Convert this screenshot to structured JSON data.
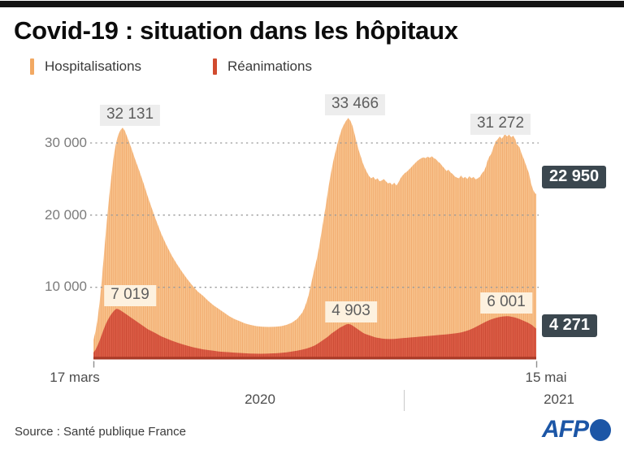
{
  "header": {
    "title": "Covid-19 : situation dans les hôpitaux"
  },
  "legend": {
    "items": [
      {
        "label": "Hospitalisations",
        "color": "#f2a963"
      },
      {
        "label": "Réanimations",
        "color": "#d14b2f"
      }
    ]
  },
  "chart_data": {
    "type": "area",
    "title": "Covid-19 : situation dans les hôpitaux",
    "x_axis": {
      "start_label": "17 mars",
      "end_label": "15 mai",
      "years": [
        "2020",
        "2021"
      ],
      "domain_days": [
        0,
        424
      ]
    },
    "y_axis": {
      "ylim": [
        0,
        35000
      ],
      "grid": "dotted",
      "ticks": [
        {
          "value": 30000,
          "label": "30 000"
        },
        {
          "value": 20000,
          "label": "20 000"
        },
        {
          "value": 10000,
          "label": "10 000"
        }
      ]
    },
    "series": [
      {
        "name": "Hospitalisations",
        "color_light": "#f8c28b",
        "color_dark": "#f1aa6b",
        "peaks": [
          {
            "label": "32 131",
            "value": 32131,
            "day": 28
          },
          {
            "label": "33 466",
            "value": 33466,
            "day": 244
          },
          {
            "label": "31 272",
            "value": 31272,
            "day": 394
          }
        ],
        "end": {
          "label": "22 950",
          "value": 22950
        },
        "points": [
          [
            0,
            2700
          ],
          [
            2,
            3900
          ],
          [
            4,
            5600
          ],
          [
            6,
            8000
          ],
          [
            8,
            11000
          ],
          [
            10,
            14500
          ],
          [
            12,
            17800
          ],
          [
            14,
            21000
          ],
          [
            16,
            23900
          ],
          [
            18,
            26400
          ],
          [
            20,
            28700
          ],
          [
            22,
            30200
          ],
          [
            24,
            31200
          ],
          [
            26,
            31800
          ],
          [
            28,
            32131
          ],
          [
            30,
            31700
          ],
          [
            33,
            30600
          ],
          [
            36,
            29400
          ],
          [
            40,
            27700
          ],
          [
            44,
            26100
          ],
          [
            48,
            24400
          ],
          [
            52,
            22600
          ],
          [
            56,
            20900
          ],
          [
            60,
            19300
          ],
          [
            65,
            17400
          ],
          [
            70,
            15800
          ],
          [
            75,
            14400
          ],
          [
            80,
            13200
          ],
          [
            85,
            12100
          ],
          [
            90,
            11100
          ],
          [
            95,
            10200
          ],
          [
            100,
            9400
          ],
          [
            105,
            8800
          ],
          [
            110,
            8100
          ],
          [
            115,
            7500
          ],
          [
            120,
            7000
          ],
          [
            125,
            6500
          ],
          [
            130,
            6000
          ],
          [
            135,
            5600
          ],
          [
            140,
            5300
          ],
          [
            145,
            5000
          ],
          [
            150,
            4800
          ],
          [
            156,
            4620
          ],
          [
            162,
            4530
          ],
          [
            168,
            4500
          ],
          [
            174,
            4520
          ],
          [
            180,
            4620
          ],
          [
            185,
            4800
          ],
          [
            190,
            5100
          ],
          [
            195,
            5600
          ],
          [
            200,
            6500
          ],
          [
            202,
            7100
          ],
          [
            204,
            7900
          ],
          [
            206,
            8900
          ],
          [
            208,
            10200
          ],
          [
            210,
            11500
          ],
          [
            212,
            12800
          ],
          [
            214,
            14000
          ],
          [
            216,
            15500
          ],
          [
            218,
            17300
          ],
          [
            220,
            19100
          ],
          [
            222,
            20900
          ],
          [
            224,
            22800
          ],
          [
            226,
            24700
          ],
          [
            228,
            26300
          ],
          [
            230,
            27700
          ],
          [
            232,
            28900
          ],
          [
            234,
            30100
          ],
          [
            236,
            31100
          ],
          [
            238,
            32000
          ],
          [
            240,
            32600
          ],
          [
            242,
            33100
          ],
          [
            244,
            33466
          ],
          [
            246,
            33100
          ],
          [
            248,
            32400
          ],
          [
            250,
            31300
          ],
          [
            252,
            30100
          ],
          [
            254,
            29000
          ],
          [
            256,
            28100
          ],
          [
            258,
            27200
          ],
          [
            260,
            26500
          ],
          [
            262,
            25900
          ],
          [
            264,
            25400
          ],
          [
            266,
            25100
          ],
          [
            268,
            25300
          ],
          [
            270,
            24900
          ],
          [
            272,
            25100
          ],
          [
            274,
            24700
          ],
          [
            276,
            24800
          ],
          [
            278,
            25000
          ],
          [
            280,
            24700
          ],
          [
            282,
            24400
          ],
          [
            284,
            24500
          ],
          [
            286,
            24200
          ],
          [
            288,
            24500
          ],
          [
            290,
            24100
          ],
          [
            292,
            24500
          ],
          [
            294,
            25100
          ],
          [
            296,
            25500
          ],
          [
            298,
            25800
          ],
          [
            300,
            26000
          ],
          [
            302,
            26300
          ],
          [
            304,
            26600
          ],
          [
            306,
            26900
          ],
          [
            308,
            27200
          ],
          [
            310,
            27500
          ],
          [
            312,
            27700
          ],
          [
            314,
            27900
          ],
          [
            316,
            28000
          ],
          [
            318,
            27900
          ],
          [
            320,
            28100
          ],
          [
            322,
            27950
          ],
          [
            324,
            28150
          ],
          [
            326,
            27900
          ],
          [
            328,
            27750
          ],
          [
            330,
            27400
          ],
          [
            332,
            27200
          ],
          [
            334,
            26800
          ],
          [
            336,
            26500
          ],
          [
            338,
            26100
          ],
          [
            340,
            26300
          ],
          [
            342,
            25900
          ],
          [
            344,
            25700
          ],
          [
            346,
            25350
          ],
          [
            348,
            25200
          ],
          [
            350,
            25100
          ],
          [
            352,
            25500
          ],
          [
            354,
            25100
          ],
          [
            356,
            25300
          ],
          [
            358,
            25000
          ],
          [
            360,
            25400
          ],
          [
            362,
            25100
          ],
          [
            364,
            25300
          ],
          [
            366,
            24950
          ],
          [
            368,
            25100
          ],
          [
            370,
            25300
          ],
          [
            372,
            25800
          ],
          [
            374,
            26100
          ],
          [
            376,
            26800
          ],
          [
            377,
            27400
          ],
          [
            379,
            28100
          ],
          [
            381,
            28500
          ],
          [
            383,
            29400
          ],
          [
            385,
            30200
          ],
          [
            387,
            30500
          ],
          [
            389,
            30900
          ],
          [
            391,
            30600
          ],
          [
            393,
            31000
          ],
          [
            394,
            31272
          ],
          [
            396,
            30900
          ],
          [
            398,
            31150
          ],
          [
            400,
            30800
          ],
          [
            402,
            31000
          ],
          [
            404,
            30500
          ],
          [
            405,
            29900
          ],
          [
            408,
            29400
          ],
          [
            410,
            28500
          ],
          [
            412,
            27800
          ],
          [
            415,
            26600
          ],
          [
            417,
            25800
          ],
          [
            419,
            24400
          ],
          [
            421,
            23500
          ],
          [
            423,
            23000
          ],
          [
            424,
            22950
          ]
        ]
      },
      {
        "name": "Réanimations",
        "color_light": "#dd5b45",
        "color_dark": "#ca4833",
        "baseline_color": "#a93a27",
        "peaks": [
          {
            "label": "7 019",
            "value": 7019,
            "day": 22
          },
          {
            "label": "4 903",
            "value": 4903,
            "day": 244
          },
          {
            "label": "6 001",
            "value": 6001,
            "day": 396
          }
        ],
        "end": {
          "label": "4 271",
          "value": 4271
        },
        "points": [
          [
            0,
            950
          ],
          [
            2,
            1350
          ],
          [
            4,
            1950
          ],
          [
            6,
            2650
          ],
          [
            8,
            3450
          ],
          [
            10,
            4250
          ],
          [
            12,
            4950
          ],
          [
            14,
            5550
          ],
          [
            16,
            6050
          ],
          [
            18,
            6450
          ],
          [
            20,
            6800
          ],
          [
            22,
            7019
          ],
          [
            24,
            6950
          ],
          [
            26,
            6800
          ],
          [
            28,
            6600
          ],
          [
            30,
            6400
          ],
          [
            33,
            6100
          ],
          [
            36,
            5800
          ],
          [
            40,
            5400
          ],
          [
            44,
            5000
          ],
          [
            48,
            4600
          ],
          [
            52,
            4200
          ],
          [
            56,
            3900
          ],
          [
            60,
            3600
          ],
          [
            65,
            3200
          ],
          [
            70,
            2900
          ],
          [
            75,
            2600
          ],
          [
            80,
            2350
          ],
          [
            85,
            2100
          ],
          [
            90,
            1900
          ],
          [
            95,
            1700
          ],
          [
            100,
            1550
          ],
          [
            105,
            1400
          ],
          [
            110,
            1300
          ],
          [
            115,
            1200
          ],
          [
            120,
            1100
          ],
          [
            125,
            1050
          ],
          [
            130,
            1000
          ],
          [
            135,
            950
          ],
          [
            140,
            900
          ],
          [
            145,
            860
          ],
          [
            150,
            820
          ],
          [
            155,
            800
          ],
          [
            160,
            790
          ],
          [
            165,
            800
          ],
          [
            170,
            830
          ],
          [
            175,
            860
          ],
          [
            180,
            910
          ],
          [
            185,
            990
          ],
          [
            190,
            1090
          ],
          [
            195,
            1210
          ],
          [
            200,
            1360
          ],
          [
            204,
            1510
          ],
          [
            208,
            1700
          ],
          [
            212,
            1950
          ],
          [
            216,
            2300
          ],
          [
            220,
            2700
          ],
          [
            224,
            3100
          ],
          [
            228,
            3600
          ],
          [
            232,
            4000
          ],
          [
            236,
            4400
          ],
          [
            240,
            4700
          ],
          [
            242,
            4850
          ],
          [
            244,
            4903
          ],
          [
            246,
            4850
          ],
          [
            248,
            4700
          ],
          [
            250,
            4500
          ],
          [
            252,
            4300
          ],
          [
            254,
            4100
          ],
          [
            256,
            3900
          ],
          [
            258,
            3700
          ],
          [
            260,
            3550
          ],
          [
            262,
            3450
          ],
          [
            264,
            3350
          ],
          [
            266,
            3250
          ],
          [
            268,
            3150
          ],
          [
            270,
            3050
          ],
          [
            272,
            3000
          ],
          [
            274,
            2950
          ],
          [
            276,
            2900
          ],
          [
            278,
            2870
          ],
          [
            280,
            2850
          ],
          [
            284,
            2830
          ],
          [
            288,
            2850
          ],
          [
            292,
            2900
          ],
          [
            296,
            2950
          ],
          [
            300,
            3000
          ],
          [
            304,
            3050
          ],
          [
            308,
            3100
          ],
          [
            312,
            3150
          ],
          [
            316,
            3200
          ],
          [
            320,
            3250
          ],
          [
            324,
            3300
          ],
          [
            328,
            3350
          ],
          [
            332,
            3400
          ],
          [
            336,
            3450
          ],
          [
            340,
            3500
          ],
          [
            344,
            3570
          ],
          [
            348,
            3650
          ],
          [
            352,
            3750
          ],
          [
            356,
            3900
          ],
          [
            360,
            4100
          ],
          [
            364,
            4350
          ],
          [
            368,
            4650
          ],
          [
            372,
            4950
          ],
          [
            376,
            5250
          ],
          [
            380,
            5500
          ],
          [
            384,
            5700
          ],
          [
            388,
            5850
          ],
          [
            392,
            5950
          ],
          [
            396,
            6001
          ],
          [
            398,
            5980
          ],
          [
            400,
            5920
          ],
          [
            404,
            5800
          ],
          [
            408,
            5600
          ],
          [
            412,
            5350
          ],
          [
            416,
            5100
          ],
          [
            420,
            4750
          ],
          [
            422,
            4500
          ],
          [
            424,
            4271
          ]
        ]
      }
    ],
    "annotation_style": {
      "peak_label_bg_hosp": "#ededed",
      "peak_label_bg_rea": "#fdf1df",
      "value_box_bg": "#3b474f",
      "value_box_text": "#ffffff"
    }
  },
  "footer": {
    "source": "Source : Santé publique France",
    "logo_text": "AFP",
    "logo_color": "#1c56a6"
  }
}
